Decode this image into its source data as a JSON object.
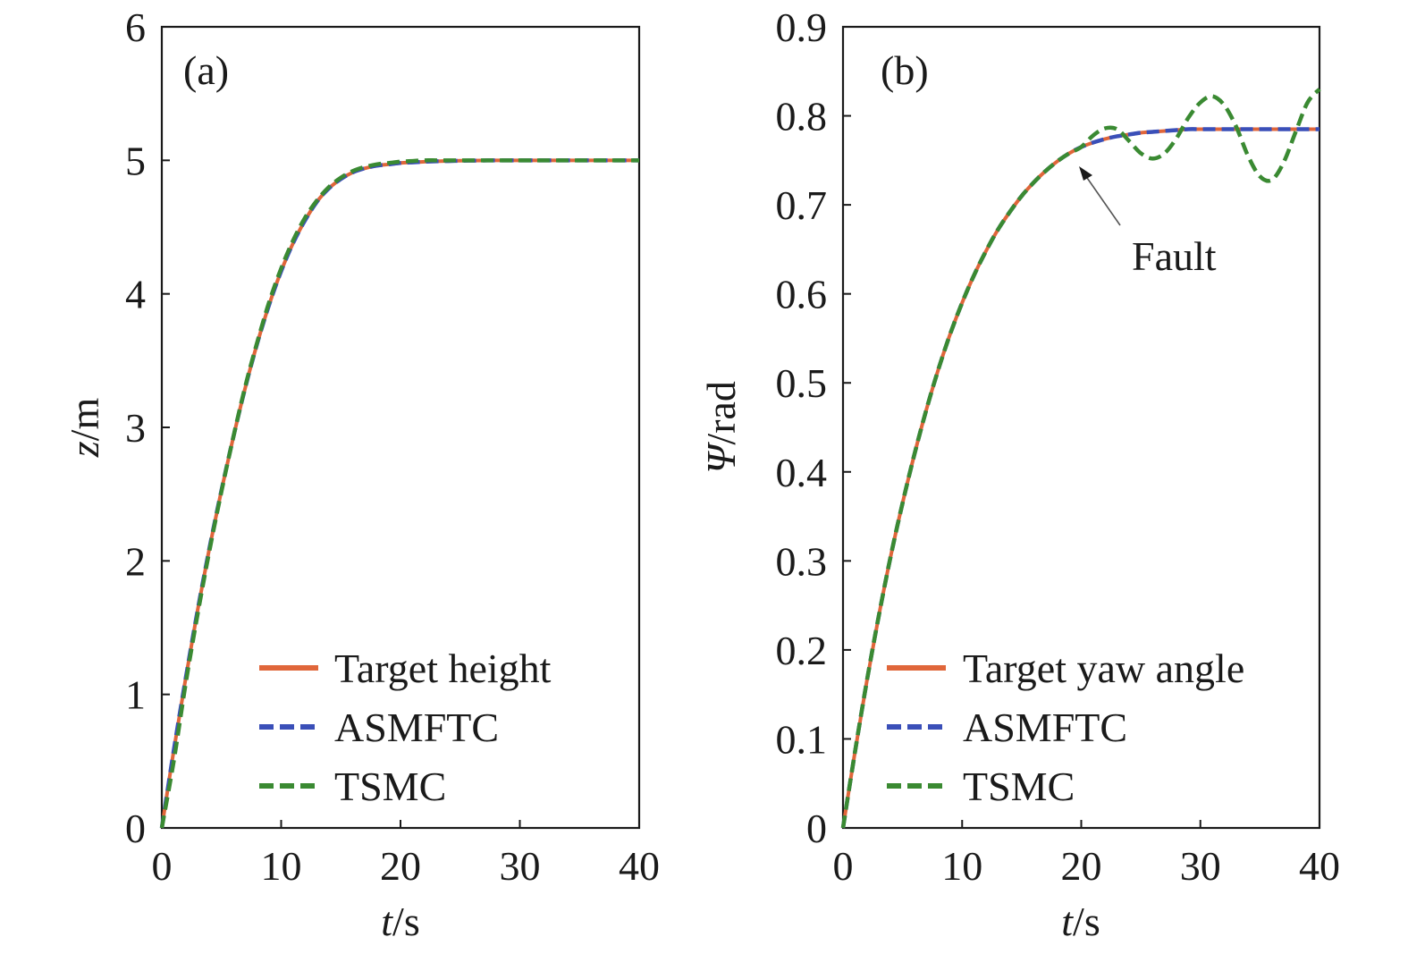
{
  "colors": {
    "target": "#e0663a",
    "asmftc": "#3a4fb8",
    "tsmc": "#3a8a32"
  },
  "chart_data": [
    {
      "type": "line",
      "panel_label": "(a)",
      "xlabel_var": "t",
      "xlabel_unit": "/s",
      "ylabel_var": "z",
      "ylabel_unit": "/m",
      "xlim": [
        0,
        40
      ],
      "ylim": [
        0,
        6
      ],
      "xticks": [
        0,
        10,
        20,
        30,
        40
      ],
      "yticks": [
        0,
        1,
        2,
        3,
        4,
        5,
        6
      ],
      "xtick_labels": [
        "0",
        "10",
        "20",
        "30",
        "40"
      ],
      "ytick_labels": [
        "0",
        "1",
        "2",
        "3",
        "4",
        "5",
        "6"
      ],
      "legend_position": "bottom-right",
      "x": [
        0,
        1,
        2,
        3,
        4,
        5,
        6,
        7,
        8,
        9,
        10,
        11,
        12,
        13,
        14,
        15,
        16,
        17,
        18,
        19,
        20,
        21,
        22,
        23,
        24,
        25,
        26,
        27,
        28,
        29,
        30,
        32,
        34,
        36,
        38,
        40
      ],
      "series": [
        {
          "name": "Target height",
          "style": "solid",
          "values": [
            0,
            0.58,
            1.12,
            1.63,
            2.1,
            2.53,
            2.93,
            3.3,
            3.63,
            3.92,
            4.17,
            4.38,
            4.55,
            4.69,
            4.79,
            4.86,
            4.91,
            4.94,
            4.96,
            4.97,
            4.98,
            4.985,
            4.99,
            4.993,
            4.995,
            4.997,
            4.998,
            4.999,
            5.0,
            5.0,
            5.0,
            5.0,
            5.0,
            5.0,
            5.0,
            5.0
          ]
        },
        {
          "name": "ASMFTC",
          "style": "dashed",
          "values": [
            0,
            0.58,
            1.12,
            1.63,
            2.1,
            2.53,
            2.93,
            3.3,
            3.63,
            3.92,
            4.17,
            4.38,
            4.55,
            4.69,
            4.79,
            4.86,
            4.91,
            4.94,
            4.96,
            4.97,
            4.98,
            4.985,
            4.99,
            4.993,
            4.995,
            4.997,
            4.998,
            4.999,
            5.0,
            5.0,
            5.0,
            5.0,
            5.0,
            5.0,
            5.0,
            5.0
          ]
        },
        {
          "name": "TSMC",
          "style": "dashed",
          "values": [
            0,
            0.5,
            1.08,
            1.6,
            2.08,
            2.52,
            2.93,
            3.31,
            3.64,
            3.94,
            4.19,
            4.4,
            4.57,
            4.7,
            4.8,
            4.87,
            4.92,
            4.95,
            4.97,
            4.98,
            4.99,
            4.995,
            5.0,
            5.0,
            5.0,
            5.0,
            5.0,
            5.0,
            5.0,
            5.0,
            5.0,
            5.0,
            5.0,
            5.0,
            5.0,
            5.0
          ]
        }
      ]
    },
    {
      "type": "line",
      "panel_label": "(b)",
      "xlabel_var": "t",
      "xlabel_unit": "/s",
      "ylabel_var": "Ψ",
      "ylabel_unit": "/rad",
      "xlim": [
        0,
        40
      ],
      "ylim": [
        0,
        0.9
      ],
      "xticks": [
        0,
        10,
        20,
        30,
        40
      ],
      "yticks": [
        0,
        0.1,
        0.2,
        0.3,
        0.4,
        0.5,
        0.6,
        0.7,
        0.8,
        0.9
      ],
      "xtick_labels": [
        "0",
        "10",
        "20",
        "30",
        "40"
      ],
      "ytick_labels": [
        "0",
        "0.1",
        "0.2",
        "0.3",
        "0.4",
        "0.5",
        "0.6",
        "0.7",
        "0.8",
        "0.9"
      ],
      "legend_position": "bottom-right",
      "annotation": {
        "text": "Fault",
        "x": 20,
        "y": 0.755
      },
      "x": [
        0,
        1,
        2,
        3,
        4,
        5,
        6,
        7,
        8,
        9,
        10,
        11,
        12,
        13,
        14,
        15,
        16,
        17,
        18,
        19,
        20,
        21,
        22,
        23,
        24,
        25,
        26,
        27,
        28,
        29,
        30,
        31,
        32,
        33,
        34,
        35,
        36,
        37,
        38,
        39,
        40
      ],
      "series": [
        {
          "name": "Target yaw angle",
          "style": "solid",
          "values": [
            0,
            0.085,
            0.165,
            0.238,
            0.305,
            0.365,
            0.42,
            0.47,
            0.515,
            0.555,
            0.59,
            0.621,
            0.648,
            0.672,
            0.692,
            0.71,
            0.725,
            0.738,
            0.749,
            0.758,
            0.765,
            0.77,
            0.774,
            0.777,
            0.779,
            0.781,
            0.782,
            0.783,
            0.784,
            0.785,
            0.785,
            0.785,
            0.785,
            0.785,
            0.785,
            0.785,
            0.785,
            0.785,
            0.785,
            0.785,
            0.785
          ]
        },
        {
          "name": "ASMFTC",
          "style": "dashed",
          "values": [
            0,
            0.085,
            0.165,
            0.238,
            0.305,
            0.365,
            0.42,
            0.47,
            0.515,
            0.555,
            0.59,
            0.621,
            0.648,
            0.672,
            0.692,
            0.71,
            0.725,
            0.738,
            0.749,
            0.758,
            0.765,
            0.77,
            0.774,
            0.777,
            0.779,
            0.781,
            0.782,
            0.783,
            0.784,
            0.785,
            0.785,
            0.785,
            0.785,
            0.785,
            0.785,
            0.785,
            0.785,
            0.785,
            0.785,
            0.785,
            0.785
          ]
        },
        {
          "name": "TSMC",
          "style": "dashed",
          "values": [
            0,
            0.085,
            0.165,
            0.238,
            0.305,
            0.365,
            0.42,
            0.47,
            0.515,
            0.555,
            0.59,
            0.621,
            0.648,
            0.672,
            0.692,
            0.71,
            0.725,
            0.738,
            0.749,
            0.758,
            0.765,
            0.778,
            0.786,
            0.785,
            0.772,
            0.758,
            0.752,
            0.758,
            0.775,
            0.798,
            0.815,
            0.822,
            0.812,
            0.788,
            0.755,
            0.732,
            0.728,
            0.748,
            0.782,
            0.815,
            0.83
          ]
        }
      ]
    }
  ]
}
